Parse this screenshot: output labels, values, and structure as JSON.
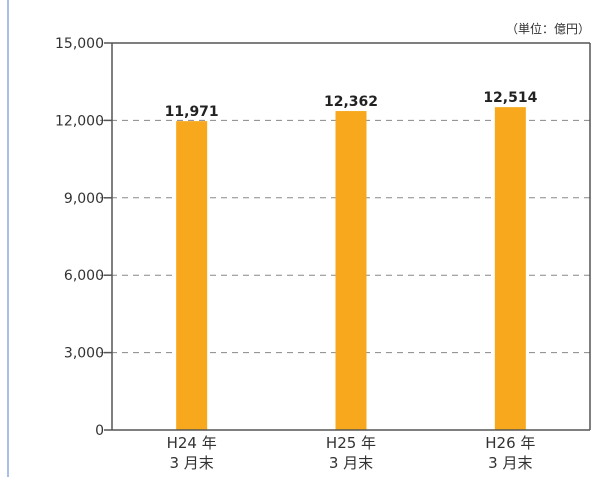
{
  "page": {
    "accent_rule_color": "#a9bfe6"
  },
  "chart_data": {
    "type": "bar",
    "title": "",
    "unit_note": "（単位：億円）",
    "categories": [
      {
        "line1": "H24 年",
        "line2": "3 月末"
      },
      {
        "line1": "H25 年",
        "line2": "3 月末"
      },
      {
        "line1": "H26 年",
        "line2": "3 月末"
      }
    ],
    "values": [
      11971,
      12362,
      12514
    ],
    "value_labels": [
      "11,971",
      "12,362",
      "12,514"
    ],
    "ylim": [
      0,
      15000
    ],
    "yticks": [
      0,
      3000,
      6000,
      9000,
      12000,
      15000
    ],
    "ytick_labels": [
      "0",
      "3,000",
      "6,000",
      "9,000",
      "12,000",
      "15,000"
    ],
    "grid": "horizontal-dashed",
    "legend": "none",
    "colors": {
      "bar": "#f8a81c",
      "axis": "#555555",
      "grid": "#888888"
    }
  }
}
